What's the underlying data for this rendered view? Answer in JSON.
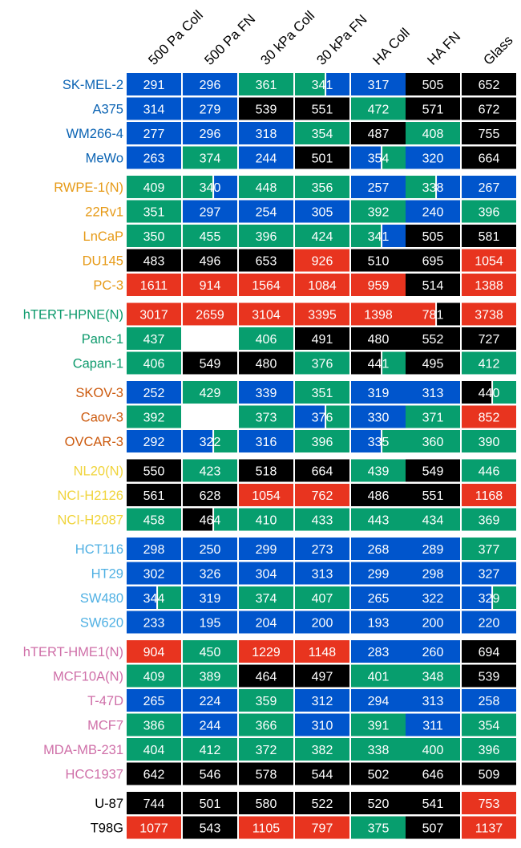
{
  "chart_data": {
    "type": "heatmap",
    "columns": [
      "500 Pa Coll",
      "500 Pa FN",
      "30 kPa Coll",
      "30 kPa FN",
      "HA Coll",
      "HA FN",
      "Glass"
    ],
    "colors": {
      "blue": "#0055cc",
      "green": "#079e6e",
      "black": "#000000",
      "red": "#e8341f"
    },
    "groups": [
      {
        "color": "#0a63b3",
        "rows": [
          {
            "label": "SK-MEL-2",
            "values": [
              291,
              296,
              361,
              341,
              317,
              505,
              652
            ],
            "cells": [
              "blue",
              "blue",
              "green",
              "green|blue",
              "blue",
              "black",
              "black"
            ]
          },
          {
            "label": "A375",
            "values": [
              314,
              279,
              539,
              551,
              472,
              571,
              672
            ],
            "cells": [
              "blue",
              "blue",
              "black",
              "black",
              "green",
              "black",
              "black"
            ]
          },
          {
            "label": "WM266-4",
            "values": [
              277,
              296,
              318,
              354,
              487,
              408,
              755
            ],
            "cells": [
              "blue",
              "blue",
              "blue",
              "green",
              "black",
              "green",
              "black"
            ]
          },
          {
            "label": "MeWo",
            "values": [
              263,
              374,
              244,
              501,
              354,
              320,
              664
            ],
            "cells": [
              "blue",
              "green",
              "blue",
              "black",
              "blue|green",
              "blue",
              "black"
            ]
          }
        ]
      },
      {
        "color": "#e69a17",
        "rows": [
          {
            "label": "RWPE-1(N)",
            "values": [
              409,
              340,
              448,
              356,
              257,
              338,
              267
            ],
            "cells": [
              "green",
              "green|blue",
              "green",
              "green",
              "blue",
              "green|blue",
              "blue"
            ]
          },
          {
            "label": "22Rv1",
            "values": [
              351,
              297,
              254,
              305,
              392,
              240,
              396
            ],
            "cells": [
              "green",
              "blue",
              "blue",
              "blue",
              "green",
              "blue",
              "green"
            ]
          },
          {
            "label": "LnCaP",
            "values": [
              350,
              455,
              396,
              424,
              341,
              505,
              581
            ],
            "cells": [
              "green",
              "green",
              "green",
              "green",
              "green|blue",
              "black",
              "black"
            ]
          },
          {
            "label": "DU145",
            "values": [
              483,
              496,
              653,
              926,
              510,
              695,
              1054
            ],
            "cells": [
              "black",
              "black",
              "black",
              "red",
              "black",
              "black",
              "red"
            ]
          },
          {
            "label": "PC-3",
            "values": [
              1611,
              914,
              1564,
              1084,
              959,
              514,
              1388
            ],
            "cells": [
              "red",
              "red",
              "red",
              "red",
              "red",
              "black",
              "red"
            ]
          }
        ]
      },
      {
        "color": "#0d9a6c",
        "rows": [
          {
            "label": "hTERT-HPNE(N)",
            "values": [
              3017,
              2659,
              3104,
              3395,
              1398,
              781,
              3738
            ],
            "cells": [
              "red",
              "red",
              "red",
              "red",
              "red",
              "red|black",
              "red"
            ]
          },
          {
            "label": "Panc-1",
            "values": [
              437,
              null,
              406,
              491,
              480,
              552,
              727
            ],
            "cells": [
              "green",
              "none",
              "green",
              "black",
              "black",
              "black",
              "black"
            ]
          },
          {
            "label": "Capan-1",
            "values": [
              406,
              549,
              480,
              376,
              441,
              495,
              412
            ],
            "cells": [
              "green",
              "black",
              "black",
              "green",
              "black|green",
              "black",
              "green"
            ]
          }
        ]
      },
      {
        "color": "#cc5a0e",
        "rows": [
          {
            "label": "SKOV-3",
            "values": [
              252,
              429,
              339,
              351,
              319,
              313,
              440
            ],
            "cells": [
              "blue",
              "green",
              "blue",
              "green",
              "blue",
              "blue",
              "black|green"
            ]
          },
          {
            "label": "Caov-3",
            "values": [
              392,
              null,
              373,
              376,
              330,
              371,
              852
            ],
            "cells": [
              "green",
              "none",
              "green",
              "blue|green",
              "blue",
              "green",
              "red"
            ]
          },
          {
            "label": "OVCAR-3",
            "values": [
              292,
              322,
              316,
              396,
              335,
              360,
              390
            ],
            "cells": [
              "blue",
              "blue|green",
              "blue",
              "green",
              "blue|green",
              "green",
              "green"
            ]
          }
        ]
      },
      {
        "color": "#f0d43c",
        "rows": [
          {
            "label": "NL20(N)",
            "values": [
              550,
              423,
              518,
              664,
              439,
              549,
              446
            ],
            "cells": [
              "black",
              "green",
              "black",
              "black",
              "green",
              "black",
              "green"
            ]
          },
          {
            "label": "NCI-H2126",
            "values": [
              561,
              628,
              1054,
              762,
              486,
              551,
              1168
            ],
            "cells": [
              "black",
              "black",
              "red",
              "red",
              "black",
              "black",
              "red"
            ]
          },
          {
            "label": "NCI-H2087",
            "values": [
              458,
              464,
              410,
              433,
              443,
              434,
              369
            ],
            "cells": [
              "green",
              "black|green",
              "green",
              "green",
              "green",
              "green",
              "green"
            ]
          }
        ]
      },
      {
        "color": "#4fb0e3",
        "rows": [
          {
            "label": "HCT116",
            "values": [
              298,
              250,
              299,
              273,
              268,
              289,
              377
            ],
            "cells": [
              "blue",
              "blue",
              "blue",
              "blue",
              "blue",
              "blue",
              "green"
            ]
          },
          {
            "label": "HT29",
            "values": [
              302,
              326,
              304,
              313,
              299,
              298,
              327
            ],
            "cells": [
              "blue",
              "blue",
              "blue",
              "blue",
              "blue",
              "blue",
              "blue"
            ]
          },
          {
            "label": "SW480",
            "values": [
              344,
              319,
              374,
              407,
              265,
              322,
              329
            ],
            "cells": [
              "blue|green",
              "blue",
              "green",
              "green",
              "blue",
              "blue",
              "blue|green"
            ]
          },
          {
            "label": "SW620",
            "values": [
              233,
              195,
              204,
              200,
              193,
              200,
              220
            ],
            "cells": [
              "blue",
              "blue",
              "blue",
              "blue",
              "blue",
              "blue",
              "blue"
            ]
          }
        ]
      },
      {
        "color": "#cf6fa8",
        "rows": [
          {
            "label": "hTERT-HME1(N)",
            "values": [
              904,
              450,
              1229,
              1148,
              283,
              260,
              694
            ],
            "cells": [
              "red",
              "green",
              "red",
              "red",
              "blue",
              "blue",
              "black"
            ]
          },
          {
            "label": "MCF10A(N)",
            "values": [
              409,
              389,
              464,
              497,
              401,
              348,
              539
            ],
            "cells": [
              "green",
              "green",
              "black",
              "black",
              "green",
              "green",
              "black"
            ]
          },
          {
            "label": "T-47D",
            "values": [
              265,
              224,
              359,
              312,
              294,
              313,
              258
            ],
            "cells": [
              "blue",
              "blue",
              "green",
              "blue",
              "blue",
              "blue",
              "blue"
            ]
          },
          {
            "label": "MCF7",
            "values": [
              386,
              244,
              366,
              310,
              391,
              311,
              354
            ],
            "cells": [
              "green",
              "blue",
              "green",
              "blue",
              "green",
              "blue",
              "green"
            ]
          },
          {
            "label": "MDA-MB-231",
            "values": [
              404,
              412,
              372,
              382,
              338,
              400,
              396
            ],
            "cells": [
              "green",
              "green",
              "green",
              "green",
              "green",
              "green",
              "green"
            ]
          },
          {
            "label": "HCC1937",
            "values": [
              642,
              546,
              578,
              544,
              502,
              646,
              509
            ],
            "cells": [
              "black",
              "black",
              "black",
              "black",
              "black",
              "black",
              "black"
            ]
          }
        ]
      },
      {
        "color": "#000000",
        "rows": [
          {
            "label": "U-87",
            "values": [
              744,
              501,
              580,
              522,
              520,
              541,
              753
            ],
            "cells": [
              "black",
              "black",
              "black",
              "black",
              "black",
              "black",
              "red"
            ]
          },
          {
            "label": "T98G",
            "values": [
              1077,
              543,
              1105,
              797,
              375,
              507,
              1137
            ],
            "cells": [
              "red",
              "black",
              "red",
              "red",
              "green",
              "black",
              "red"
            ]
          }
        ]
      }
    ]
  }
}
